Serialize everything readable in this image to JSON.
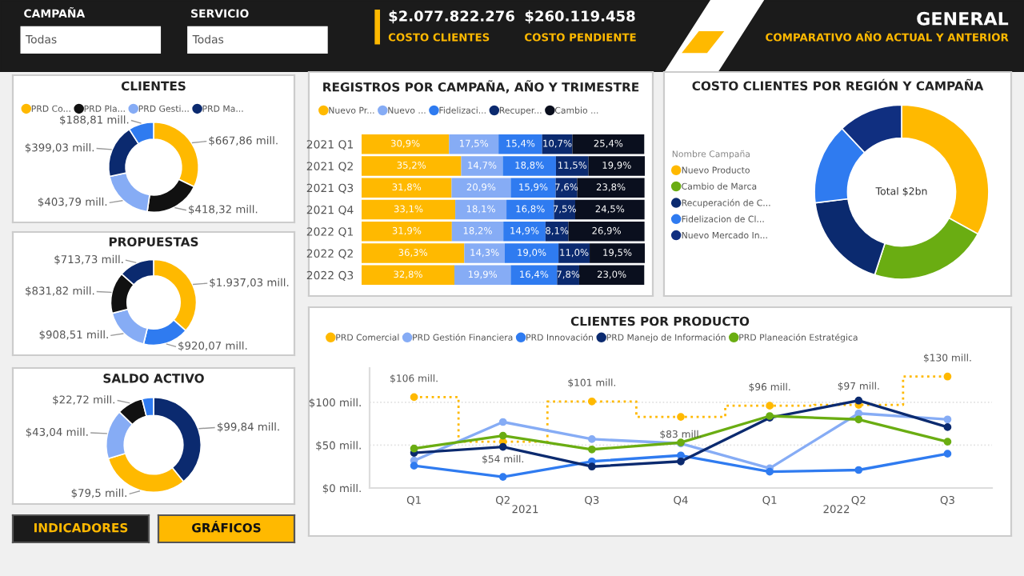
{
  "chart_data": [
    {
      "type": "other",
      "annotations": [
        "CAMPAÑA",
        "Todas",
        "SERVICIO",
        "Todas",
        "$2.077.822.276",
        "COSTO CLIENTES",
        "$260.119.458",
        "COSTO PENDIENTE",
        "GENERAL",
        "COMPARATIVO AÑO ACTUAL Y ANTERIOR",
        "INDICADORES",
        "GRÁFICOS"
      ]
    },
    {
      "type": "donut",
      "title": "CLIENTES",
      "legend": "top",
      "categories": [
        "PRD Co...",
        "PRD Pla...",
        "PRD Gesti...",
        "PRD Ma...",
        null
      ],
      "values": [
        667.86,
        418.32,
        403.79,
        399.03,
        188.81
      ],
      "colors": [
        "#ffb900",
        "#111111",
        "#86acf5",
        "#0b2a6f",
        "#2f7bf0"
      ],
      "value_labels": [
        "$667,86 mill.",
        "$418,32 mill.",
        "$403,79 mill.",
        "$399,03 mill.",
        "$188,81 mill."
      ]
    },
    {
      "type": "donut",
      "title": "PROPUESTAS",
      "categories": [
        null,
        null,
        null,
        null,
        null
      ],
      "values": [
        1937.03,
        920.07,
        908.51,
        831.82,
        713.73
      ],
      "colors": [
        "#ffb900",
        "#2f7bf0",
        "#86acf5",
        "#111111",
        "#0b2a6f"
      ],
      "value_labels": [
        "$1.937,03 mill.",
        "$920,07 mill.",
        "$908,51 mill.",
        "$831,82 mill.",
        "$713,73 mill."
      ]
    },
    {
      "type": "donut",
      "title": "SALDO ACTIVO",
      "categories": [
        null,
        null,
        null,
        null,
        null
      ],
      "values": [
        99.84,
        79.5,
        43.04,
        22.72,
        10
      ],
      "colors": [
        "#0b2a6f",
        "#ffb900",
        "#86acf5",
        "#111111",
        "#2f7bf0"
      ],
      "value_labels": [
        "$99,84 mill.",
        "$79,5 mill.",
        "$43,04 mill.",
        "$22,72 mill.",
        null
      ]
    },
    {
      "type": "bar",
      "title": "REGISTROS POR CAMPAÑA, AÑO Y TRIMESTRE",
      "orientation": "horizontal",
      "stacked": true,
      "legend": "top",
      "categories": [
        "2021 Q1",
        "2021 Q2",
        "2021 Q3",
        "2021 Q4",
        "2022 Q1",
        "2022 Q2",
        "2022 Q3"
      ],
      "series": [
        {
          "name": "Nuevo Pr...",
          "color": "#ffb900",
          "values": [
            30.9,
            35.2,
            31.8,
            33.1,
            31.9,
            36.3,
            32.8
          ],
          "value_labels": [
            "30,9%",
            "35,2%",
            "31,8%",
            "33,1%",
            "31,9%",
            "36,3%",
            "32,8%"
          ]
        },
        {
          "name": "Nuevo ...",
          "color": "#86acf5",
          "values": [
            17.5,
            14.7,
            20.9,
            18.1,
            18.2,
            14.3,
            19.9
          ],
          "value_labels": [
            "17,5%",
            "14,7%",
            "20,9%",
            "18,1%",
            "18,2%",
            "14,3%",
            "19,9%"
          ]
        },
        {
          "name": "Fidelizaci...",
          "color": "#2f7bf0",
          "values": [
            15.4,
            18.8,
            15.9,
            16.8,
            14.9,
            19.0,
            16.4
          ],
          "value_labels": [
            "15,4%",
            "18,8%",
            "15,9%",
            "16,8%",
            "14,9%",
            "19,0%",
            "16,4%"
          ]
        },
        {
          "name": "Recuper...",
          "color": "#0b2a6f",
          "values": [
            10.7,
            11.5,
            7.6,
            7.5,
            8.1,
            11.0,
            7.8
          ],
          "value_labels": [
            "10,7%",
            "11,5%",
            "7,6%",
            "7,5%",
            "8,1%",
            "11,0%",
            "7,8%"
          ]
        },
        {
          "name": "Cambio ...",
          "color": "#0a0f1e",
          "values": [
            25.4,
            19.9,
            23.8,
            24.5,
            26.9,
            19.5,
            23.0
          ],
          "value_labels": [
            "25,4%",
            "19,9%",
            "23,8%",
            "24,5%",
            "26,9%",
            "19,5%",
            "23,0%"
          ]
        }
      ]
    },
    {
      "type": "donut",
      "title": "COSTO CLIENTES POR REGIÓN Y CAMPAÑA",
      "legend": "left",
      "legend_title": "Nombre Campaña",
      "categories": [
        "Nuevo Producto",
        "Cambio de Marca",
        "Recuperación de C...",
        "Fidelizacion de Cl...",
        "Nuevo Mercado In..."
      ],
      "values": [
        33,
        22,
        18,
        15,
        12
      ],
      "colors": [
        "#ffb900",
        "#6aad12",
        "#0b2a6f",
        "#2f7bf0",
        "#102f80"
      ],
      "annotations": [
        "Total $2bn"
      ]
    },
    {
      "type": "line",
      "title": "CLIENTES POR PRODUCTO",
      "legend": "top",
      "grid": "y",
      "marker": "circle",
      "categories": [
        "Q1",
        "Q2",
        "Q3",
        "Q4",
        "Q1",
        "Q2",
        "Q3"
      ],
      "ylim": [
        0,
        140
      ],
      "yticks": [
        {
          "value": 0,
          "label": "$0 mill."
        },
        {
          "value": 50,
          "label": "$50 mill."
        },
        {
          "value": 100,
          "label": "$100 mill."
        }
      ],
      "annotations": [
        "2021",
        "2022"
      ],
      "series": [
        {
          "name": "PRD Comercial",
          "type": "step",
          "line_style": "dotted",
          "color": "#ffb900",
          "values": [
            106,
            54,
            101,
            83,
            96,
            97,
            130
          ],
          "value_labels": [
            "$106 mill.",
            "$54 mill.",
            "$101 mill.",
            "$83 mill.",
            "$96 mill.",
            "$97 mill.",
            "$130 mill."
          ]
        },
        {
          "name": "PRD Gestión Financiera",
          "color": "#86acf5",
          "values": [
            32,
            77,
            57,
            52,
            23,
            87,
            80
          ]
        },
        {
          "name": "PRD Innovación",
          "color": "#2f7bf0",
          "values": [
            26,
            13,
            31,
            38,
            19,
            21,
            40
          ]
        },
        {
          "name": "PRD Manejo de Información",
          "color": "#0b2a6f",
          "values": [
            41,
            48,
            25,
            31,
            82,
            102,
            71
          ]
        },
        {
          "name": "PRD Planeación Estratégica",
          "color": "#6aad12",
          "values": [
            46,
            61,
            45,
            53,
            84,
            80,
            54
          ]
        }
      ]
    }
  ]
}
